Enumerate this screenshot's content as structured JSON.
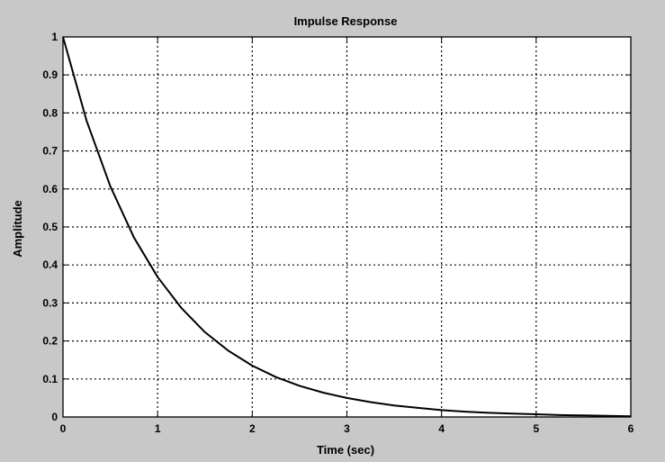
{
  "chart_data": {
    "type": "line",
    "title": "Impulse Response",
    "xlabel": "Time (sec)",
    "ylabel": "Amplitude",
    "xlim": [
      0,
      6
    ],
    "ylim": [
      0,
      1
    ],
    "x_ticks": [
      "0",
      "1",
      "2",
      "3",
      "4",
      "5",
      "6"
    ],
    "y_ticks": [
      "0",
      "0.1",
      "0.2",
      "0.3",
      "0.4",
      "0.5",
      "0.6",
      "0.7",
      "0.8",
      "0.9",
      "1"
    ],
    "grid": true,
    "background_color": "#c8c8c8",
    "plot_color": "#ffffff",
    "line_color": "#000000",
    "series": [
      {
        "x": [
          0,
          0.25,
          0.5,
          0.75,
          1,
          1.25,
          1.5,
          1.75,
          2,
          2.25,
          2.5,
          2.75,
          3,
          3.25,
          3.5,
          3.75,
          4,
          4.25,
          4.5,
          4.75,
          5,
          5.25,
          5.5,
          5.75,
          6
        ],
        "values": [
          1.0,
          0.779,
          0.607,
          0.472,
          0.368,
          0.287,
          0.223,
          0.174,
          0.135,
          0.105,
          0.082,
          0.064,
          0.05,
          0.039,
          0.03,
          0.024,
          0.018,
          0.014,
          0.011,
          0.009,
          0.007,
          0.005,
          0.004,
          0.003,
          0.002
        ]
      }
    ]
  }
}
